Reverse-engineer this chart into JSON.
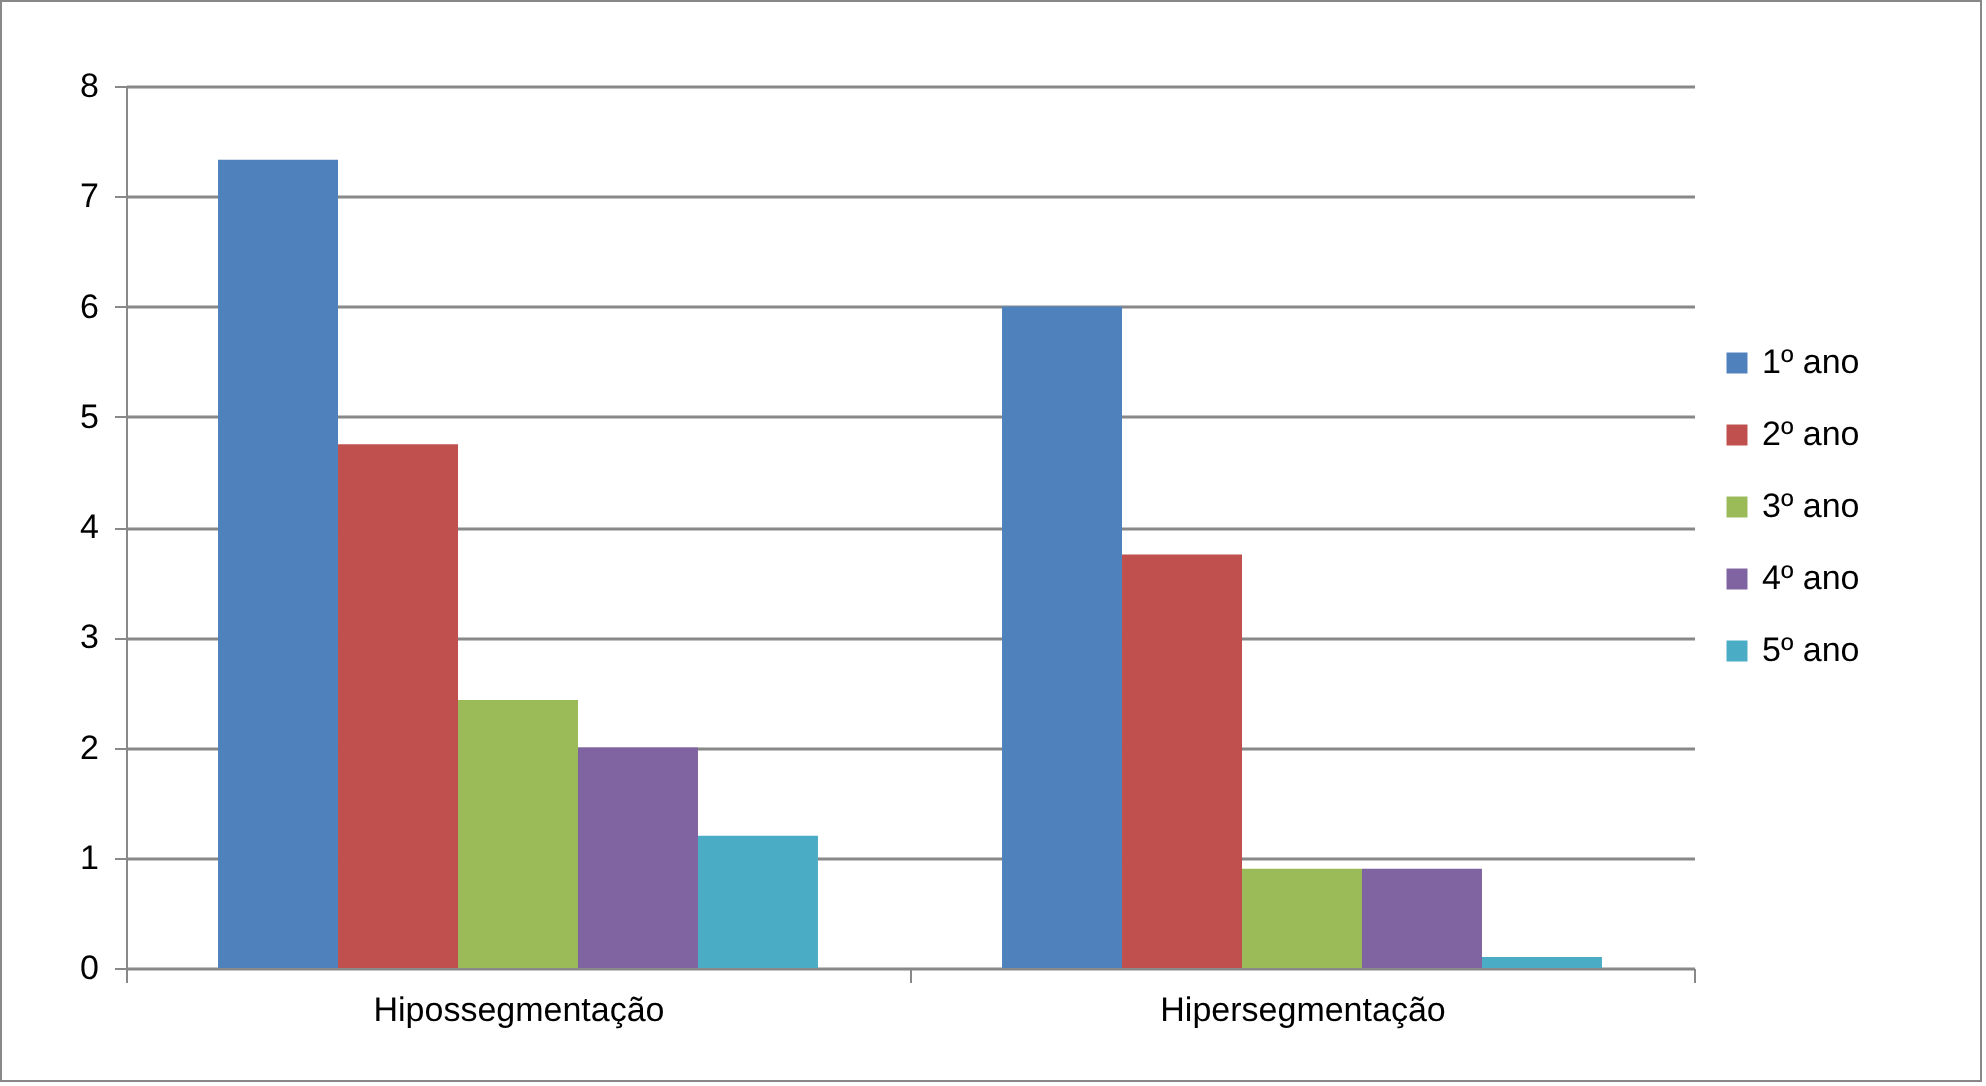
{
  "chart_data": {
    "type": "bar",
    "categories": [
      "Hipossegmentação",
      "Hipersegmentação"
    ],
    "series": [
      {
        "name": "1º ano",
        "color": "#4f81bd",
        "values": [
          7.33,
          6
        ]
      },
      {
        "name": "2º ano",
        "color": "#c0504d",
        "values": [
          4.75,
          3.75
        ]
      },
      {
        "name": "3º ano",
        "color": "#9bbb59",
        "values": [
          2.43,
          0.9
        ]
      },
      {
        "name": "4º ano",
        "color": "#8064a2",
        "values": [
          2,
          0.9
        ]
      },
      {
        "name": "5º ano",
        "color": "#4bacc6",
        "values": [
          1.2,
          0.1
        ]
      }
    ],
    "ylim": [
      0,
      8
    ],
    "yticks": [
      0,
      1,
      2,
      3,
      4,
      5,
      6,
      7,
      8
    ],
    "grid": "y",
    "legend": "right"
  }
}
